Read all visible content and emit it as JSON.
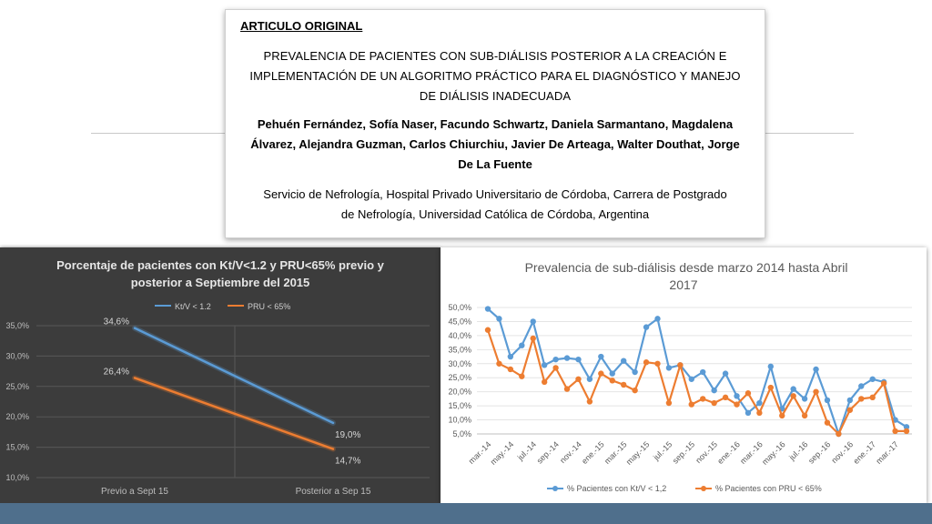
{
  "article": {
    "label": "ARTICULO ORIGINAL",
    "title": "PREVALENCIA DE PACIENTES CON SUB-DIÁLISIS POSTERIOR A LA CREACIÓN E IMPLEMENTACIÓN DE UN ALGORITMO PRÁCTICO PARA EL DIAGNÓSTICO Y MANEJO DE DIÁLISIS INADECUADA",
    "authors": "Pehuén Fernández, Sofía Naser, Facundo Schwartz, Daniela Sarmantano, Magdalena Álvarez, Alejandra Guzman, Carlos Chiurchiu, Javier De Arteaga, Walter Douthat, Jorge De La Fuente",
    "affiliation": "Servicio de Nefrología, Hospital Privado Universitario de Córdoba, Carrera de Postgrado de Nefrología, Universidad Católica de Córdoba, Argentina"
  },
  "colors": {
    "blue": "#5b9bd5",
    "orange": "#ed7d31",
    "dark_bg": "#3c3c3c",
    "band": "#4f6f8c"
  },
  "chart_data": [
    {
      "type": "line",
      "title_line1": "Porcentaje de pacientes con Kt/V<1.2 y PRU<65% previo y",
      "title_line2": "posterior a Septiembre del 2015",
      "categories": [
        "Previo a Sept 15",
        "Posterior a Sep 15"
      ],
      "series": [
        {
          "name": "Kt/V < 1.2",
          "values": [
            34.6,
            19.0
          ],
          "labels": [
            "34,6%",
            "19,0%"
          ]
        },
        {
          "name": "PRU < 65%",
          "values": [
            26.4,
            14.7
          ],
          "labels": [
            "26,4%",
            "14,7%"
          ]
        }
      ],
      "ylim": [
        10,
        35
      ],
      "yticks": [
        "10,0%",
        "15,0%",
        "20,0%",
        "25,0%",
        "30,0%",
        "35,0%"
      ],
      "legend": "top",
      "grid": true
    },
    {
      "type": "line",
      "title_line1": "Prevalencia de sub-diálisis desde marzo 2014 hasta Abril",
      "title_line2": "2017",
      "x_labels": [
        "mar.-14",
        "may.-14",
        "jul.-14",
        "sep.-14",
        "nov.-14",
        "ene.-15",
        "mar.-15",
        "may.-15",
        "jul.-15",
        "sep.-15",
        "nov.-15",
        "ene.-16",
        "mar.-16",
        "may.-16",
        "jul.-16",
        "sep.-16",
        "nov.-16",
        "ene.-17",
        "mar.-17"
      ],
      "series": [
        {
          "name": "% Pacientes con Kt/V < 1,2",
          "values": [
            49.5,
            46.0,
            32.5,
            36.5,
            45.0,
            29.5,
            31.5,
            32.0,
            31.5,
            24.5,
            32.5,
            26.5,
            31.0,
            27.0,
            43.0,
            46.0,
            28.5,
            29.5,
            24.5,
            27.0,
            20.5,
            26.5,
            18.5,
            12.5,
            16.0,
            29.0,
            14.0,
            21.0,
            17.5,
            28.0,
            17.0,
            5.0,
            17.0,
            22.0,
            24.5,
            23.5,
            10.0,
            7.5
          ]
        },
        {
          "name": "% Pacientes con PRU < 65%",
          "values": [
            42.0,
            30.0,
            28.0,
            25.5,
            39.0,
            23.5,
            28.5,
            21.0,
            24.5,
            16.5,
            26.5,
            24.0,
            22.5,
            20.5,
            30.5,
            30.0,
            16.0,
            29.5,
            15.5,
            17.5,
            16.0,
            18.0,
            15.5,
            19.5,
            12.5,
            21.5,
            11.5,
            18.5,
            11.5,
            20.0,
            9.0,
            5.0,
            13.5,
            17.5,
            18.0,
            23.0,
            6.0,
            6.0
          ]
        }
      ],
      "ylim": [
        5,
        50
      ],
      "yticks": [
        "5,0%",
        "10,0%",
        "15,0%",
        "20,0%",
        "25,0%",
        "30,0%",
        "35,0%",
        "40,0%",
        "45,0%",
        "50,0%"
      ],
      "legend": "bottom",
      "grid": true
    }
  ]
}
